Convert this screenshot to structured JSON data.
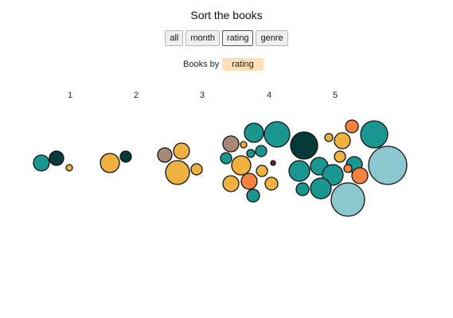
{
  "title": "Sort the books",
  "buttons": [
    "all",
    "month",
    "rating",
    "genre"
  ],
  "active_button": "rating",
  "books_by_label": "Books by",
  "books_by_value": "rating",
  "colors": {
    "teal": "#1a9690",
    "dark_teal": "#073b3a",
    "gold": "#efb140",
    "orange": "#f7813f",
    "tan": "#a88876",
    "light_blue": "#8bc8d0",
    "maroon": "#7a1a2e",
    "tag_bg": "#fde0b8"
  },
  "chart_data": {
    "type": "scatter",
    "categories": [
      "1",
      "2",
      "3",
      "4",
      "5"
    ],
    "groups": [
      {
        "rating": "1",
        "books": [
          {
            "color": "teal",
            "size": 10
          },
          {
            "color": "dark_teal",
            "size": 9
          },
          {
            "color": "gold",
            "size": 4
          }
        ]
      },
      {
        "rating": "2",
        "books": [
          {
            "color": "gold",
            "size": 12
          },
          {
            "color": "dark_teal",
            "size": 7
          }
        ]
      },
      {
        "rating": "3",
        "books": [
          {
            "color": "tan",
            "size": 9
          },
          {
            "color": "gold",
            "size": 10
          },
          {
            "color": "gold",
            "size": 15
          },
          {
            "color": "gold",
            "size": 7
          }
        ]
      },
      {
        "rating": "4",
        "books": [
          {
            "color": "teal",
            "size": 12
          },
          {
            "color": "teal",
            "size": 16
          },
          {
            "color": "tan",
            "size": 10
          },
          {
            "color": "gold",
            "size": 4
          },
          {
            "color": "teal",
            "size": 5
          },
          {
            "color": "teal",
            "size": 7
          },
          {
            "color": "teal",
            "size": 7
          },
          {
            "color": "gold",
            "size": 12
          },
          {
            "color": "maroon",
            "size": 3
          },
          {
            "color": "gold",
            "size": 7
          },
          {
            "color": "gold",
            "size": 10
          },
          {
            "color": "orange",
            "size": 10
          },
          {
            "color": "teal",
            "size": 8
          },
          {
            "color": "gold",
            "size": 8
          }
        ]
      },
      {
        "rating": "5",
        "books": [
          {
            "color": "dark_teal",
            "size": 17
          },
          {
            "color": "orange",
            "size": 8
          },
          {
            "color": "teal",
            "size": 17
          },
          {
            "color": "gold",
            "size": 5
          },
          {
            "color": "gold",
            "size": 10
          },
          {
            "color": "teal",
            "size": 13
          },
          {
            "color": "gold",
            "size": 7
          },
          {
            "color": "light_blue",
            "size": 24
          },
          {
            "color": "teal",
            "size": 11
          },
          {
            "color": "teal",
            "size": 13
          },
          {
            "color": "teal",
            "size": 10
          },
          {
            "color": "orange",
            "size": 5
          },
          {
            "color": "orange",
            "size": 10
          },
          {
            "color": "teal",
            "size": 8
          },
          {
            "color": "teal",
            "size": 13
          },
          {
            "color": "light_blue",
            "size": 21
          }
        ]
      }
    ]
  }
}
